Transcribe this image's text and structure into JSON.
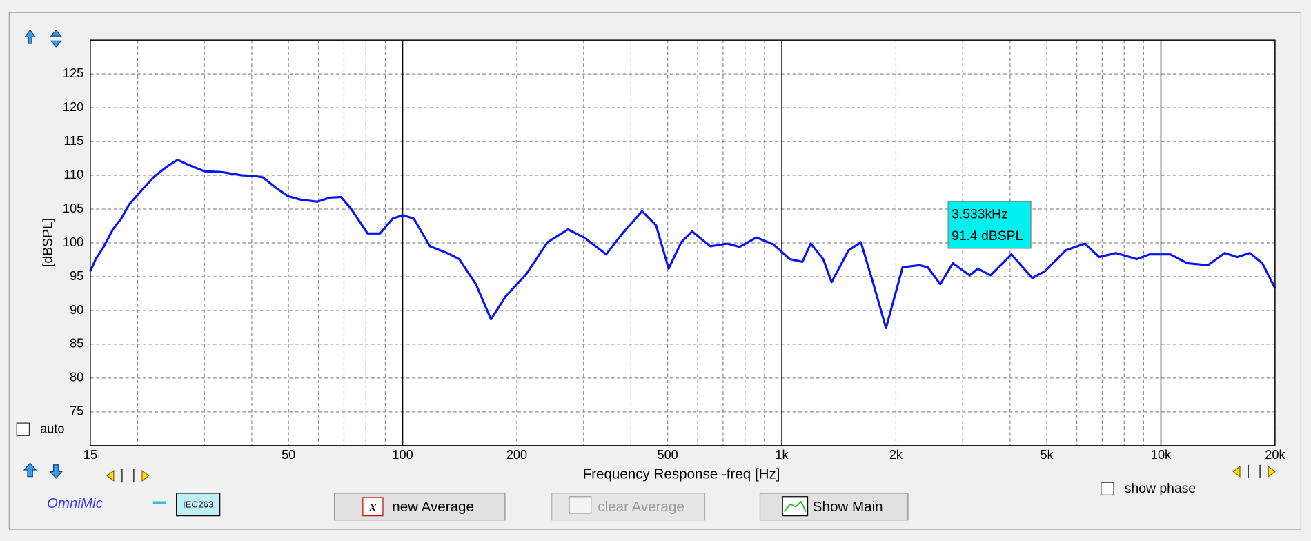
{
  "chart_data": {
    "type": "line",
    "xlabel": "Frequency Response -freq [Hz]",
    "ylabel": "[dBSPL]",
    "xscale": "log",
    "xlim": [
      15,
      20000
    ],
    "xticks": [
      15,
      50,
      100,
      200,
      500,
      {
        "value": 1000,
        "label": "1k"
      },
      {
        "value": 2000,
        "label": "2k"
      },
      {
        "value": 5000,
        "label": "5k"
      },
      {
        "value": 10000,
        "label": "10k"
      },
      {
        "value": 20000,
        "label": "20k"
      }
    ],
    "xminor": [
      20,
      30,
      40,
      60,
      70,
      80,
      90,
      300,
      400,
      600,
      700,
      800,
      900,
      3000,
      4000,
      6000,
      7000,
      8000,
      9000
    ],
    "ylim": [
      70,
      130
    ],
    "yticks": [
      75,
      80,
      85,
      90,
      95,
      100,
      105,
      110,
      115,
      120,
      125
    ],
    "grid": true,
    "x": [
      15,
      15.5,
      16.3,
      17.2,
      18.1,
      19,
      20.5,
      22.1,
      23.9,
      25.5,
      27.1,
      30,
      33.2,
      37.7,
      40.7,
      42.8,
      46.2,
      49.9,
      53.8,
      59.6,
      64.3,
      68.7,
      73,
      80.8,
      87.2,
      94.1,
      100,
      107,
      118,
      131,
      141,
      156,
      171,
      187,
      212,
      241,
      273,
      303,
      344,
      380,
      428,
      466,
      503,
      543,
      580,
      648,
      718,
      774,
      857,
      949,
      1050,
      1133,
      1192,
      1286,
      1353,
      1500,
      1617,
      1745,
      1883,
      2083,
      2307,
      2427,
      2618,
      2826,
      3129,
      3291,
      3551,
      4033,
      4578,
      4941,
      5610,
      6302,
      6871,
      7609,
      8642,
      9328,
      10590,
      11730,
      13310,
      14730,
      15900,
      17150,
      18510,
      20000
    ],
    "series": [
      {
        "color": "#0a14f0",
        "values": [
          95.8,
          97.6,
          99.5,
          102,
          103.6,
          105.7,
          107.8,
          109.8,
          111.3,
          112.3,
          111.6,
          110.6,
          110.5,
          110,
          109.9,
          109.7,
          108.2,
          106.9,
          106.4,
          106.1,
          106.7,
          106.8,
          105.1,
          101.4,
          101.4,
          103.6,
          104.1,
          103.6,
          99.5,
          98.5,
          97.6,
          93.9,
          88.7,
          92.1,
          95.4,
          100.1,
          102,
          100.7,
          98.3,
          101.4,
          104.7,
          102.6,
          96.2,
          100.1,
          101.7,
          99.5,
          99.9,
          99.4,
          100.8,
          99.8,
          97.6,
          97.2,
          99.9,
          97.6,
          94.2,
          98.9,
          100.1,
          93.9,
          87.4,
          96.4,
          96.7,
          96.4,
          93.9,
          97,
          95.2,
          96.2,
          95.2,
          98.3,
          94.8,
          95.8,
          98.9,
          99.9,
          97.9,
          98.5,
          97.6,
          98.3,
          98.3,
          97,
          96.7,
          98.5,
          97.9,
          98.5,
          97,
          93.3
        ]
      }
    ],
    "annotation": [
      "3.533kHz",
      "91.4 dBSPL"
    ]
  },
  "ui": {
    "auto": "auto",
    "show_phase": "show phase",
    "legend": "OmniMic",
    "mic": "IEC263",
    "buttons": [
      "new Average",
      "clear Average",
      "Show Main"
    ]
  }
}
